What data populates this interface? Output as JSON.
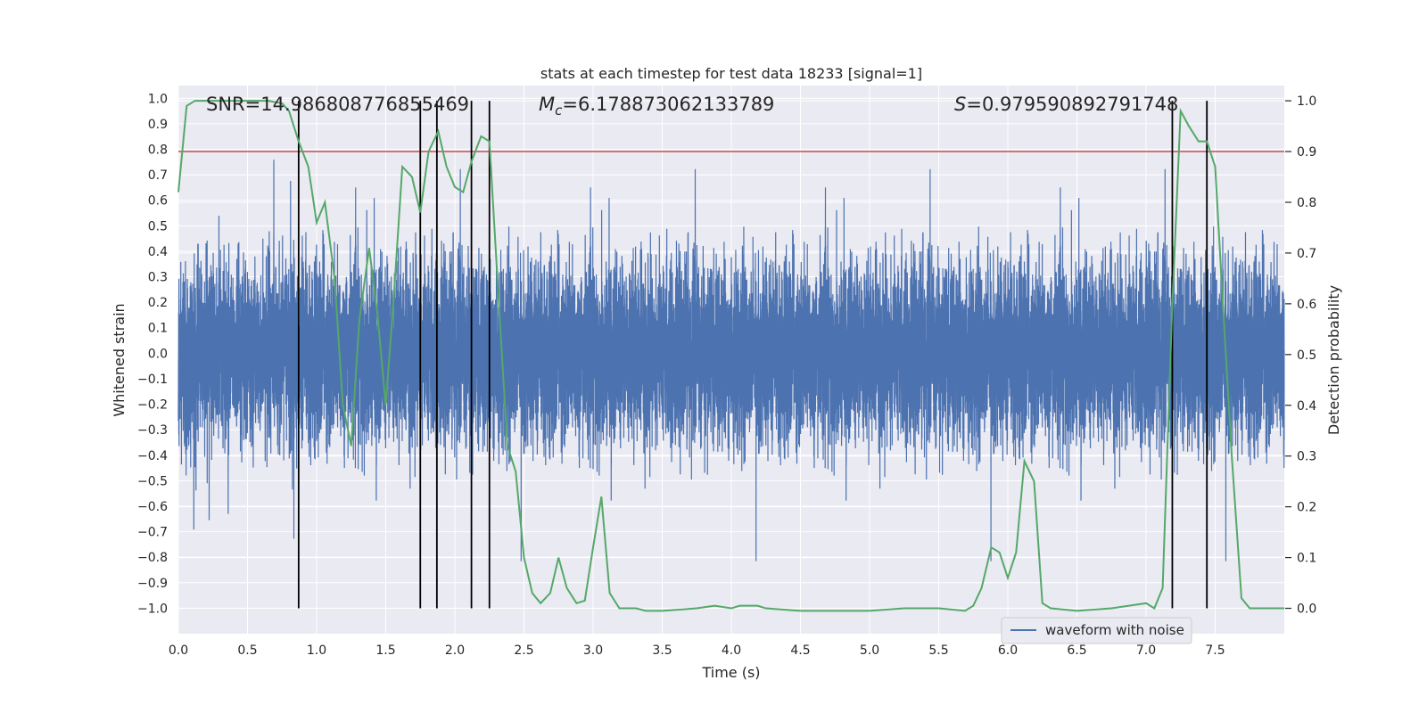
{
  "chart_data": {
    "type": "line",
    "title": "stats at each timestep for test data 18233 [signal=1]",
    "xlabel": "Time (s)",
    "ylabel": "Whitened strain",
    "y2label": "Detection probability",
    "xlim": [
      0,
      8.0
    ],
    "ylim": [
      -1.1,
      1.05
    ],
    "y2lim": [
      -0.05,
      1.03
    ],
    "xticks": [
      "0.0",
      "0.5",
      "1.0",
      "1.5",
      "2.0",
      "2.5",
      "3.0",
      "3.5",
      "4.0",
      "4.5",
      "5.0",
      "5.5",
      "6.0",
      "6.5",
      "7.0",
      "7.5"
    ],
    "xtick_values": [
      0,
      0.5,
      1,
      1.5,
      2,
      2.5,
      3,
      3.5,
      4,
      4.5,
      5,
      5.5,
      6,
      6.5,
      7,
      7.5
    ],
    "yticks": [
      "1.0",
      "0.9",
      "0.8",
      "0.7",
      "0.6",
      "0.5",
      "0.4",
      "0.3",
      "0.2",
      "0.1",
      "0.0",
      "−0.1",
      "−0.2",
      "−0.3",
      "−0.4",
      "−0.5",
      "−0.6",
      "−0.7",
      "−0.8",
      "−0.9",
      "−1.0"
    ],
    "ytick_values": [
      1.0,
      0.9,
      0.8,
      0.7,
      0.6,
      0.5,
      0.4,
      0.3,
      0.2,
      0.1,
      0.0,
      -0.1,
      -0.2,
      -0.3,
      -0.4,
      -0.5,
      -0.6,
      -0.7,
      -0.8,
      -0.9,
      -1.0
    ],
    "y2ticks": [
      "1.0",
      "0.9",
      "0.8",
      "0.7",
      "0.6",
      "0.5",
      "0.4",
      "0.3",
      "0.2",
      "0.1",
      "0.0"
    ],
    "y2tick_values": [
      1.0,
      0.9,
      0.8,
      0.7,
      0.6,
      0.5,
      0.4,
      0.3,
      0.2,
      0.1,
      0.0
    ],
    "grid": true,
    "legend": {
      "placement": "bottom-right",
      "entries": [
        "waveform with noise"
      ]
    },
    "annotations": {
      "snr_label": "SNR=14.986808776855469",
      "mc_symbol": "M",
      "mc_sub": "c",
      "mc_value": "=6.178873062133789",
      "s_symbol": "S",
      "s_value": "=0.979590892791748"
    },
    "threshold": 0.9,
    "event_markers": [
      0.87,
      1.75,
      1.87,
      2.12,
      2.25,
      7.19,
      7.44
    ],
    "probability_series": {
      "x": [
        0.0,
        0.06,
        0.12,
        0.25,
        0.4,
        0.55,
        0.65,
        0.75,
        0.8,
        0.87,
        0.94,
        1.0,
        1.06,
        1.13,
        1.19,
        1.25,
        1.31,
        1.38,
        1.44,
        1.5,
        1.56,
        1.62,
        1.69,
        1.75,
        1.81,
        1.88,
        1.94,
        2.0,
        2.06,
        2.12,
        2.19,
        2.25,
        2.31,
        2.38,
        2.44,
        2.5,
        2.56,
        2.62,
        2.69,
        2.75,
        2.81,
        2.88,
        2.94,
        3.0,
        3.06,
        3.12,
        3.19,
        3.25,
        3.31,
        3.38,
        3.5,
        3.75,
        3.88,
        4.0,
        4.06,
        4.12,
        4.19,
        4.25,
        4.5,
        4.75,
        5.0,
        5.25,
        5.5,
        5.69,
        5.75,
        5.81,
        5.88,
        5.94,
        6.0,
        6.06,
        6.12,
        6.19,
        6.25,
        6.31,
        6.5,
        6.75,
        7.0,
        7.06,
        7.12,
        7.19,
        7.25,
        7.31,
        7.38,
        7.44,
        7.5,
        7.56,
        7.62,
        7.69,
        7.75,
        7.88,
        8.0
      ],
      "y": [
        0.82,
        0.99,
        1.0,
        1.0,
        1.0,
        1.0,
        1.0,
        0.995,
        0.98,
        0.92,
        0.87,
        0.76,
        0.8,
        0.65,
        0.4,
        0.32,
        0.57,
        0.71,
        0.58,
        0.4,
        0.62,
        0.87,
        0.85,
        0.78,
        0.9,
        0.94,
        0.87,
        0.83,
        0.82,
        0.88,
        0.93,
        0.92,
        0.64,
        0.32,
        0.27,
        0.1,
        0.03,
        0.01,
        0.03,
        0.1,
        0.04,
        0.01,
        0.015,
        0.12,
        0.22,
        0.03,
        0.0,
        0.0,
        0.0,
        -0.005,
        -0.005,
        0.0,
        0.005,
        0.0,
        0.005,
        0.005,
        0.005,
        0.0,
        -0.005,
        -0.005,
        -0.005,
        0.0,
        0.0,
        -0.005,
        0.005,
        0.04,
        0.12,
        0.11,
        0.06,
        0.11,
        0.29,
        0.25,
        0.01,
        0.0,
        -0.005,
        0.0,
        0.01,
        0.0,
        0.04,
        0.6,
        0.98,
        0.95,
        0.92,
        0.92,
        0.87,
        0.58,
        0.3,
        0.02,
        0.0,
        0.0,
        0.0
      ]
    },
    "waveform": {
      "name": "waveform with noise",
      "sample_rate_hz": 2048,
      "duration_s": 8.0
    },
    "colors": {
      "background": "#eaeaf2",
      "grid": "#ffffff",
      "waveform": "#4c72b0",
      "probability": "#55a868",
      "threshold": "#c44e52",
      "markers": "#000000",
      "text": "#262626"
    }
  }
}
